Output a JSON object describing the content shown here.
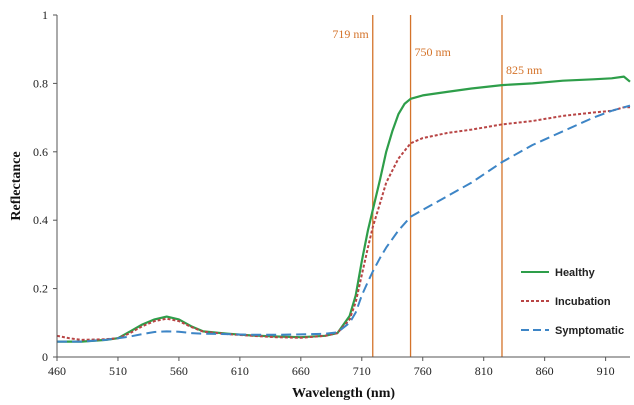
{
  "chart_data": {
    "type": "line",
    "title": "",
    "xlabel": "Wavelength (nm)",
    "ylabel": "Reflectance",
    "xlim": [
      460,
      930
    ],
    "ylim": [
      0,
      1
    ],
    "x_ticks": [
      460,
      510,
      560,
      610,
      660,
      710,
      760,
      810,
      860,
      910
    ],
    "y_ticks": [
      0,
      0.2,
      0.4,
      0.6,
      0.8,
      1
    ],
    "y_tick_labels": [
      "0",
      "0.2",
      "0.4",
      "0.6",
      "0.8",
      "1"
    ],
    "grid": false,
    "legend_position": "bottom-right",
    "annotations": [
      {
        "x": 719,
        "label": "719 nm",
        "color": "#d4732a"
      },
      {
        "x": 750,
        "label": "750 nm",
        "color": "#d4732a"
      },
      {
        "x": 825,
        "label": "825 nm",
        "color": "#d4732a"
      }
    ],
    "series": [
      {
        "name": "Healthy",
        "color": "#2e9e4a",
        "style": "solid",
        "points": [
          [
            460,
            0.045
          ],
          [
            480,
            0.045
          ],
          [
            500,
            0.05
          ],
          [
            510,
            0.055
          ],
          [
            520,
            0.075
          ],
          [
            530,
            0.095
          ],
          [
            540,
            0.11
          ],
          [
            550,
            0.118
          ],
          [
            560,
            0.11
          ],
          [
            570,
            0.09
          ],
          [
            580,
            0.075
          ],
          [
            600,
            0.068
          ],
          [
            620,
            0.063
          ],
          [
            640,
            0.06
          ],
          [
            660,
            0.058
          ],
          [
            680,
            0.062
          ],
          [
            690,
            0.07
          ],
          [
            700,
            0.12
          ],
          [
            705,
            0.18
          ],
          [
            710,
            0.28
          ],
          [
            715,
            0.37
          ],
          [
            719,
            0.43
          ],
          [
            725,
            0.52
          ],
          [
            730,
            0.6
          ],
          [
            735,
            0.66
          ],
          [
            740,
            0.71
          ],
          [
            745,
            0.74
          ],
          [
            750,
            0.755
          ],
          [
            760,
            0.765
          ],
          [
            780,
            0.775
          ],
          [
            800,
            0.785
          ],
          [
            825,
            0.795
          ],
          [
            850,
            0.8
          ],
          [
            875,
            0.808
          ],
          [
            900,
            0.812
          ],
          [
            915,
            0.815
          ],
          [
            925,
            0.82
          ],
          [
            930,
            0.805
          ]
        ]
      },
      {
        "name": "Incubation",
        "color": "#b84545",
        "style": "dotted",
        "points": [
          [
            460,
            0.062
          ],
          [
            470,
            0.055
          ],
          [
            480,
            0.05
          ],
          [
            500,
            0.052
          ],
          [
            510,
            0.055
          ],
          [
            520,
            0.07
          ],
          [
            530,
            0.09
          ],
          [
            540,
            0.105
          ],
          [
            550,
            0.112
          ],
          [
            560,
            0.105
          ],
          [
            570,
            0.088
          ],
          [
            580,
            0.074
          ],
          [
            600,
            0.067
          ],
          [
            620,
            0.062
          ],
          [
            640,
            0.058
          ],
          [
            660,
            0.056
          ],
          [
            680,
            0.062
          ],
          [
            690,
            0.07
          ],
          [
            700,
            0.11
          ],
          [
            705,
            0.16
          ],
          [
            710,
            0.24
          ],
          [
            715,
            0.32
          ],
          [
            719,
            0.38
          ],
          [
            725,
            0.45
          ],
          [
            730,
            0.51
          ],
          [
            740,
            0.58
          ],
          [
            750,
            0.625
          ],
          [
            760,
            0.64
          ],
          [
            780,
            0.655
          ],
          [
            800,
            0.665
          ],
          [
            825,
            0.68
          ],
          [
            850,
            0.69
          ],
          [
            875,
            0.705
          ],
          [
            900,
            0.715
          ],
          [
            915,
            0.72
          ],
          [
            925,
            0.73
          ],
          [
            930,
            0.73
          ]
        ]
      },
      {
        "name": "Symptomatic",
        "color": "#3d85c6",
        "style": "dashed",
        "points": [
          [
            460,
            0.045
          ],
          [
            480,
            0.045
          ],
          [
            500,
            0.05
          ],
          [
            510,
            0.055
          ],
          [
            520,
            0.06
          ],
          [
            530,
            0.067
          ],
          [
            540,
            0.073
          ],
          [
            550,
            0.075
          ],
          [
            560,
            0.074
          ],
          [
            570,
            0.07
          ],
          [
            580,
            0.068
          ],
          [
            600,
            0.067
          ],
          [
            620,
            0.065
          ],
          [
            640,
            0.065
          ],
          [
            660,
            0.066
          ],
          [
            680,
            0.068
          ],
          [
            690,
            0.072
          ],
          [
            700,
            0.1
          ],
          [
            705,
            0.13
          ],
          [
            710,
            0.18
          ],
          [
            715,
            0.22
          ],
          [
            719,
            0.25
          ],
          [
            725,
            0.29
          ],
          [
            730,
            0.32
          ],
          [
            740,
            0.37
          ],
          [
            750,
            0.41
          ],
          [
            760,
            0.43
          ],
          [
            780,
            0.47
          ],
          [
            800,
            0.51
          ],
          [
            825,
            0.57
          ],
          [
            850,
            0.62
          ],
          [
            875,
            0.66
          ],
          [
            900,
            0.7
          ],
          [
            915,
            0.72
          ],
          [
            925,
            0.73
          ],
          [
            930,
            0.735
          ]
        ]
      }
    ]
  }
}
